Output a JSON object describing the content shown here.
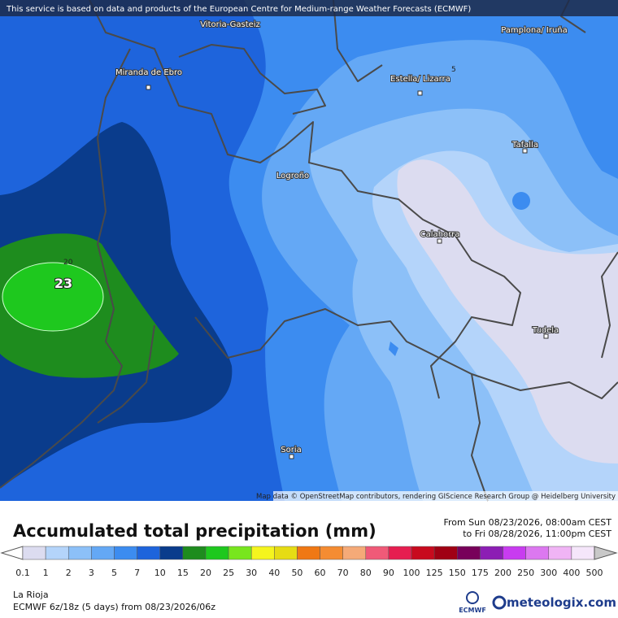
{
  "header": {
    "notice": "This service is based on data and products of the European Centre for Medium-range Weather Forecasts (ECMWF)"
  },
  "map": {
    "cities": [
      "Vitoria-Gasteiz",
      "Pamplona/ Iruña",
      "Miranda de Ebro",
      "Estella/ Lizarra",
      "Tafalla",
      "Logroño",
      "Calahorra",
      "Tudela",
      "Soria"
    ],
    "contour_labels": [
      "5",
      "20"
    ],
    "max_label": "23",
    "attribution": "Map data © OpenStreetMap contributors, rendering GIScience Research Group @ Heidelberg University"
  },
  "title": "Accumulated total precipitation (mm)",
  "period": {
    "from": "From Sun 08/23/2026, 08:00am CEST",
    "to": "to Fri 08/28/2026, 11:00pm CEST"
  },
  "legend": {
    "values": [
      0.1,
      1,
      2,
      3,
      5,
      7,
      10,
      15,
      20,
      25,
      30,
      40,
      50,
      60,
      70,
      80,
      90,
      100,
      125,
      150,
      175,
      200,
      250,
      300,
      400,
      500
    ],
    "colors": [
      "#dcdcf0",
      "#b4d4fa",
      "#8cc0f8",
      "#64a8f5",
      "#3c8cf0",
      "#1e64dc",
      "#0a3c8c",
      "#1e8c1e",
      "#1ec81e",
      "#78e61e",
      "#f5f51e",
      "#e6dc14",
      "#f07814",
      "#f58c32",
      "#f5aa78",
      "#f05a78",
      "#e61e50",
      "#c80a1e",
      "#a00014",
      "#78005a",
      "#8c1eb4",
      "#c83cf0",
      "#dc78f0",
      "#f0b4f5",
      "#f5e6fa"
    ],
    "below_color": "#ffffff",
    "above_color": "#c8c8c8"
  },
  "footer": {
    "region": "La Rioja",
    "model": "ECMWF 6z/18z (5 days) from 08/23/2026/06z",
    "ecmwf_logo": "ECMWF",
    "brand": "meteologix.com"
  }
}
